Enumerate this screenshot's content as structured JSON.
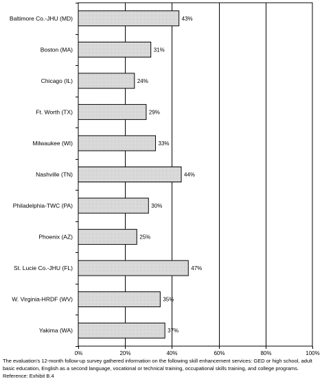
{
  "chart_data": {
    "type": "bar",
    "orientation": "horizontal",
    "categories": [
      "Baltimore Co.-JHU (MD)",
      "Boston (MA)",
      "Chicago (IL)",
      "Ft. Worth (TX)",
      "Milwaukee (WI)",
      "Nashville (TN)",
      "Philadelphia-TWC (PA)",
      "Phoenix (AZ)",
      "St. Lucie Co.-JHU (FL)",
      "W. Virginia-HRDF (WV)",
      "Yakima (WA)"
    ],
    "values": [
      43,
      31,
      24,
      29,
      33,
      44,
      30,
      25,
      47,
      35,
      37
    ],
    "data_labels": [
      "43%",
      "31%",
      "24%",
      "29%",
      "33%",
      "44%",
      "30%",
      "25%",
      "47%",
      "35%",
      "37%"
    ],
    "xlim": [
      0,
      100
    ],
    "x_ticks": [
      0,
      20,
      40,
      60,
      80,
      100
    ],
    "x_tick_labels": [
      "0%",
      "20%",
      "40%",
      "60%",
      "80%",
      "100%"
    ],
    "grid": "vertical",
    "bar_fill": "dotted gray",
    "title": "",
    "xlabel": "",
    "ylabel": ""
  },
  "footnote": "The evaluation's 12-month follow-up survey gathered information on the following skill enhancement services: GED or high school, adult basic education, English as a second language, vocational or technical training, occupational skills training, and college programs.  Reference: Exhibit B.4"
}
